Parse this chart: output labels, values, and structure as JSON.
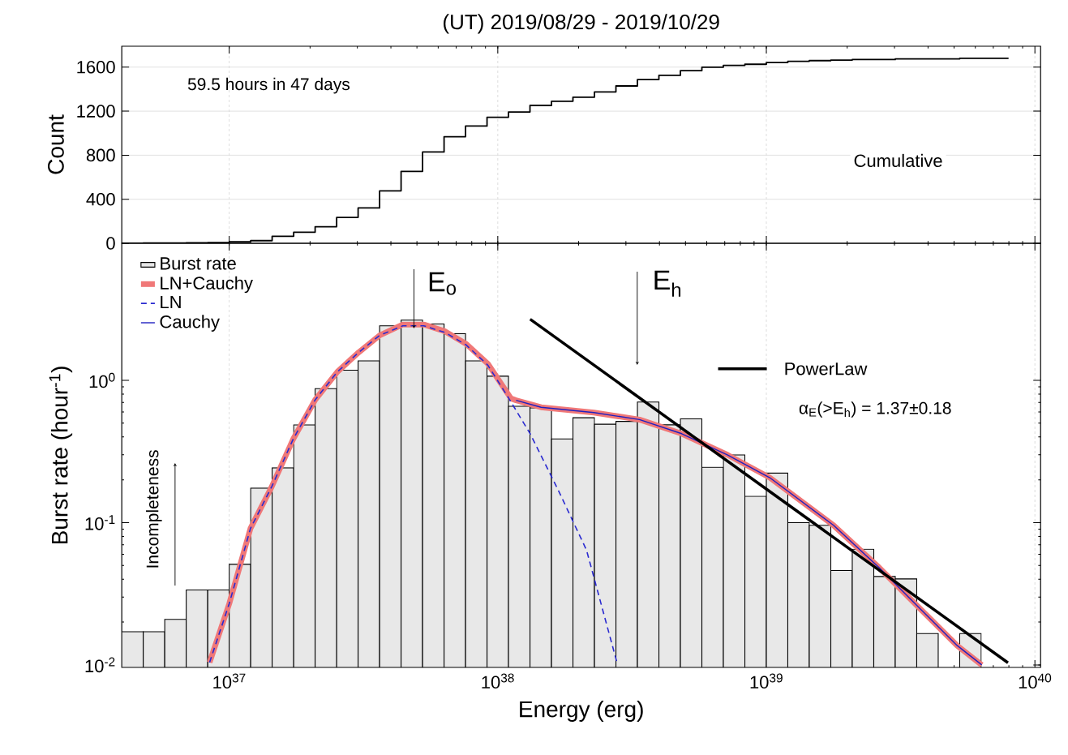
{
  "chart_data": [
    {
      "type": "step",
      "title": "(UT) 2019/08/29 - 2019/10/29",
      "ylabel": "Count",
      "log": "x",
      "xlim": [
        3.981e+36,
        1.05e+40
      ],
      "ylim": [
        0,
        1790
      ],
      "xticks": [
        {
          "value": 1e+37,
          "label": null
        },
        {
          "value": 1e+38,
          "label": null
        },
        {
          "value": 1e+39,
          "label": null
        },
        {
          "value": 1e+40,
          "label": null
        }
      ],
      "yticks": [
        0,
        400,
        800,
        1200,
        1600
      ],
      "tick_labels": "y",
      "grid": true,
      "annotations": [
        "59.5 hours in 47 days"
      ],
      "series": [
        {
          "name": "Cumulative",
          "color": "#000000",
          "x": [
            3.981e+36,
            4.786e+36,
            5.754e+36,
            6.918e+36,
            8.318e+36,
            1e+37,
            1.202e+37,
            1.445e+37,
            1.738e+37,
            2.089e+37,
            2.512e+37,
            3.02e+37,
            3.631e+37,
            4.365e+37,
            5.248e+37,
            6.31e+37,
            7.586e+37,
            9.12e+37,
            1.096e+38,
            1.318e+38,
            1.585e+38,
            1.905e+38,
            2.291e+38,
            2.754e+38,
            3.311e+38,
            3.981e+38,
            4.786e+38,
            5.754e+38,
            6.918e+38,
            8.318e+38,
            1e+39,
            1.202e+39,
            1.445e+39,
            1.738e+39,
            2.089e+39,
            2.512e+39,
            3.02e+39,
            3.631e+39,
            4.365e+39,
            5.248e+39,
            7.98e+39
          ],
          "values": [
            1,
            2,
            3,
            5,
            7,
            13,
            24,
            64,
            101,
            150,
            235,
            321,
            476,
            653,
            829,
            968,
            1065,
            1145,
            1193,
            1252,
            1290,
            1327,
            1375,
            1429,
            1487,
            1525,
            1568,
            1600,
            1616,
            1626,
            1642,
            1653,
            1659,
            1664,
            1669,
            1669,
            1675,
            1675,
            1675,
            1680,
            1680
          ]
        }
      ]
    },
    {
      "type": "histogram",
      "xlabel": "Energy (erg)",
      "ylabel": "Burst rate (hour$^{-1}$)",
      "log": "xy",
      "xlim": [
        3.981e+36,
        1.05e+40
      ],
      "ylim": [
        0.0096,
        9.2
      ],
      "xticks": [
        {
          "value": 1e+37,
          "label": "10$^{37}$"
        },
        {
          "value": 1e+38,
          "label": "10$^{38}$"
        },
        {
          "value": 1e+39,
          "label": "10$^{39}$"
        },
        {
          "value": 1e+40,
          "label": "10$^{40}$"
        }
      ],
      "yticks": [
        {
          "value": 0.01,
          "label": "10$^{-2}$"
        },
        {
          "value": 0.1,
          "label": "10$^{-1}$"
        },
        {
          "value": 1,
          "label": "10$^{0}$"
        }
      ],
      "grid": "x",
      "legend": "top left",
      "annotations": [
        "E$_{o}$",
        "E$_{h}$",
        "Incompleteness",
        "α$_{E}$(>E$_{h}$) = 1.37±0.18"
      ],
      "series": [
        {
          "name": "Burst rate",
          "type": "histogram",
          "color": "#e8e8e8",
          "bins": [
            3.981e+36,
            4.786e+36,
            5.754e+36,
            6.918e+36,
            8.318e+36,
            1e+37,
            1.202e+37,
            1.445e+37,
            1.738e+37,
            2.089e+37,
            2.512e+37,
            3.02e+37,
            3.631e+37,
            4.365e+37,
            5.248e+37,
            6.31e+37,
            7.586e+37,
            9.12e+37,
            1.096e+38,
            1.318e+38,
            1.585e+38,
            1.905e+38,
            2.291e+38,
            2.754e+38,
            3.311e+38,
            3.981e+38,
            4.786e+38,
            5.754e+38,
            6.918e+38,
            8.318e+38,
            1e+39,
            1.202e+39,
            1.445e+39,
            1.738e+39,
            2.089e+39,
            2.512e+39,
            3.02e+39,
            3.631e+39,
            4.365e+39,
            5.248e+39,
            6.31e+39
          ],
          "values": [
            0.0171,
            0.0171,
            0.0209,
            0.0336,
            0.0336,
            0.0509,
            0.175,
            0.243,
            0.486,
            0.874,
            1.18,
            1.37,
            2.42,
            2.65,
            2.49,
            2.13,
            1.37,
            1.07,
            0.658,
            0.64,
            0.388,
            0.546,
            0.492,
            0.515,
            0.705,
            0.487,
            0.536,
            0.245,
            0.299,
            0.153,
            0.223,
            0.1,
            0.0958,
            0.0461,
            0.065,
            0.0418,
            0.0402,
            0.0166,
            null,
            0.0166
          ]
        },
        {
          "name": "LN+Cauchy",
          "type": "line",
          "color": "#f07878",
          "x": [
            8.45e+36,
            1e+37,
            1.2e+37,
            1.44e+37,
            1.73e+37,
            2.09e+37,
            2.53e+37,
            3.03e+37,
            3.63e+37,
            4.43e+37,
            5.3e+37,
            6.37e+37,
            7.64e+37,
            9.18e+37,
            1.12e+38,
            1.17e+38,
            1.45e+38,
            2.28e+38,
            3.37e+38,
            4.84e+38,
            7.18e+38,
            1.03e+39,
            1.78e+39,
            2.63e+39,
            3.78e+39,
            5.13e+39,
            6.34e+39
          ],
          "values": [
            0.0104,
            0.0269,
            0.091,
            0.179,
            0.386,
            0.73,
            1.15,
            1.57,
            2.07,
            2.47,
            2.47,
            2.21,
            1.8,
            1.31,
            0.746,
            0.724,
            0.647,
            0.594,
            0.53,
            0.422,
            0.299,
            0.207,
            0.0957,
            0.0483,
            0.0243,
            0.0137,
            0.01
          ]
        },
        {
          "name": "LN",
          "type": "line",
          "color": "#2a2ad0",
          "line_style": "dashed",
          "x": [
            8.45e+36,
            1e+37,
            1.2e+37,
            1.44e+37,
            1.73e+37,
            2.09e+37,
            2.53e+37,
            3.03e+37,
            3.63e+37,
            4.43e+37,
            5.3e+37,
            6.37e+37,
            7.64e+37,
            9.18e+37,
            1.1e+38,
            1.32e+38,
            1.68e+38,
            2.14e+38,
            2.77e+38
          ],
          "values": [
            0.0104,
            0.0269,
            0.091,
            0.179,
            0.386,
            0.73,
            1.15,
            1.57,
            2.07,
            2.42,
            2.42,
            2.17,
            1.77,
            1.28,
            0.746,
            0.422,
            0.169,
            0.0641,
            0.0106
          ]
        },
        {
          "name": "Cauchy",
          "type": "line",
          "color": "#2020c0",
          "x": [
            1.17e+38,
            1.45e+38,
            2.28e+38,
            3.37e+38,
            4.84e+38,
            7.18e+38,
            1.03e+39,
            1.78e+39,
            2.63e+39,
            3.78e+39,
            5.13e+39,
            6.34e+39
          ],
          "values": [
            0.724,
            0.647,
            0.594,
            0.53,
            0.422,
            0.299,
            0.207,
            0.0957,
            0.0483,
            0.0243,
            0.0137,
            0.01
          ]
        },
        {
          "name": "PowerLaw",
          "type": "line",
          "color": "#000000",
          "x": [
            1.32e+38,
            7.94e+39
          ],
          "values": [
            2.69,
            0.01035
          ]
        }
      ]
    }
  ]
}
